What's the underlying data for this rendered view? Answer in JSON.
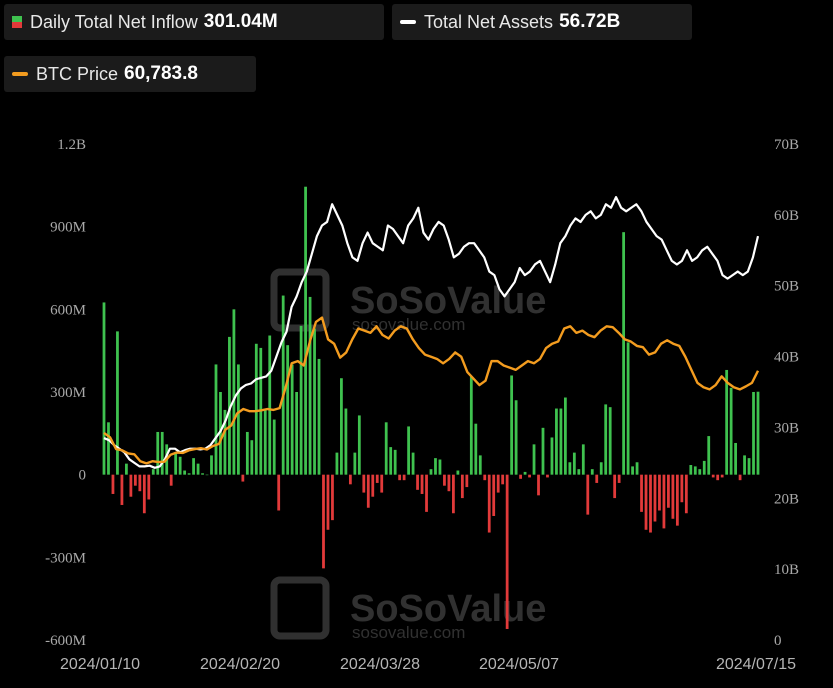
{
  "legend": {
    "inflow": {
      "label": "Daily Total Net Inflow",
      "value": "301.04M",
      "color_pos": "#3fc24f",
      "color_neg": "#e23a3a"
    },
    "assets": {
      "label": "Total Net Assets",
      "value": "56.72B",
      "color": "#ffffff"
    },
    "btc": {
      "label": "BTC Price",
      "value": "60,783.8",
      "color": "#f39c1f"
    }
  },
  "watermark": {
    "brand": "SoSoValue",
    "site": "sosovalue.com"
  },
  "chart_data": {
    "type": "bar",
    "left_axis": {
      "ticks": [
        "1.2B",
        "900M",
        "600M",
        "300M",
        "0",
        "-300M",
        "-600M"
      ],
      "range": [
        -600,
        1200
      ],
      "unit": "M"
    },
    "right_axis": {
      "ticks": [
        "70B",
        "60B",
        "50B",
        "40B",
        "30B",
        "20B",
        "10B",
        "0"
      ],
      "range": [
        0,
        70
      ],
      "unit": "B"
    },
    "x_ticks": [
      "2024/01/10",
      "2024/02/20",
      "2024/03/28",
      "2024/05/07",
      "2024/07/15"
    ],
    "grid": false,
    "legend_position": "top-left",
    "series": [
      {
        "name": "Daily Total Net Inflow",
        "kind": "bar",
        "unit": "M USD",
        "values": [
          625,
          190,
          -70,
          520,
          -110,
          40,
          -80,
          -40,
          -60,
          -140,
          -90,
          20,
          155,
          155,
          110,
          -40,
          80,
          65,
          15,
          5,
          60,
          40,
          5,
          0,
          70,
          400,
          300,
          235,
          500,
          600,
          400,
          -25,
          155,
          125,
          475,
          460,
          240,
          505,
          200,
          -130,
          650,
          470,
          400,
          300,
          540,
          1045,
          645,
          530,
          420,
          -340,
          -200,
          -165,
          80,
          350,
          240,
          -35,
          80,
          215,
          -65,
          -120,
          -80,
          -30,
          -65,
          190,
          100,
          90,
          -20,
          -20,
          175,
          80,
          -55,
          -70,
          -135,
          20,
          60,
          55,
          -40,
          -60,
          -140,
          15,
          -85,
          -45,
          355,
          185,
          70,
          -20,
          -210,
          -150,
          -65,
          -35,
          -560,
          360,
          270,
          -15,
          10,
          -10,
          110,
          -75,
          170,
          -10,
          135,
          240,
          240,
          280,
          45,
          80,
          20,
          110,
          -145,
          20,
          -30,
          45,
          255,
          245,
          -85,
          -30,
          880,
          480,
          30,
          45,
          -135,
          -200,
          -210,
          -170,
          -130,
          -195,
          -120,
          -160,
          -185,
          -100,
          -140,
          35,
          30,
          20,
          50,
          140,
          -10,
          -20,
          -10,
          380,
          315,
          115,
          -20,
          70,
          60,
          300,
          301.04
        ]
      },
      {
        "name": "Total Net Assets",
        "kind": "line",
        "unit": "B USD",
        "values": [
          28.5,
          28.2,
          27.5,
          27.0,
          26.5,
          25.5,
          25.0,
          24.5,
          24.5,
          24.6,
          24.3,
          24.5,
          25.5,
          27.0,
          27.0,
          26.5,
          26.8,
          27.0,
          27.0,
          26.9,
          27.0,
          27.5,
          28.5,
          29.5,
          31.0,
          33.0,
          34.5,
          35.5,
          36.0,
          36.2,
          36.8,
          37.0,
          37.2,
          38.0,
          40.0,
          42.0,
          43.5,
          47.0,
          48.5,
          50.5,
          52.0,
          54.5,
          57.0,
          58.5,
          59.0,
          61.5,
          60.0,
          58.5,
          56.0,
          54.0,
          53.5,
          56.0,
          57.5,
          56.0,
          55.5,
          55.0,
          58.5,
          58.0,
          57.0,
          56.0,
          58.5,
          59.5,
          61.0,
          57.5,
          56.5,
          58.0,
          59.0,
          58.5,
          56.5,
          54.0,
          54.5,
          55.5,
          56.0,
          56.0,
          55.0,
          54.0,
          52.0,
          51.5,
          49.5,
          48.5,
          49.5,
          50.5,
          52.5,
          51.5,
          52.0,
          53.0,
          53.5,
          52.0,
          50.5,
          53.0,
          56.0,
          57.0,
          58.5,
          59.5,
          59.0,
          60.0,
          60.5,
          59.5,
          60.0,
          61.5,
          61.0,
          62.5,
          61.0,
          60.5,
          61.0,
          61.5,
          60.5,
          59.0,
          58.0,
          57.0,
          56.5,
          55.0,
          53.5,
          53.0,
          53.5,
          55.0,
          53.5,
          54.0,
          55.0,
          55.5,
          54.5,
          53.5,
          51.5,
          51.0,
          51.5,
          52.0,
          51.5,
          52.0,
          54.0,
          57.0
        ]
      },
      {
        "name": "BTC Price",
        "kind": "line",
        "unit": "USD",
        "y_axis": "unlabeled",
        "values": [
          46500,
          45500,
          42800,
          42500,
          41800,
          41600,
          40000,
          39500,
          40000,
          39800,
          39900,
          41500,
          42000,
          41900,
          42500,
          42800,
          43000,
          42700,
          43500,
          44000,
          47200,
          48200,
          51000,
          52000,
          51500,
          51500,
          51700,
          52000,
          51800,
          52200,
          57000,
          62500,
          63000,
          62000,
          67500,
          72000,
          73000,
          68000,
          67000,
          63800,
          65000,
          68000,
          70500,
          70000,
          69500,
          71000,
          69000,
          68200,
          70000,
          71000,
          70500,
          68000,
          66000,
          64500,
          64000,
          63500,
          62500,
          63500,
          65000,
          64000,
          60500,
          59000,
          57500,
          58500,
          63000,
          63000,
          62000,
          61500,
          61000,
          62000,
          63000,
          62500,
          63500,
          66000,
          67000,
          67500,
          70500,
          71000,
          69500,
          70000,
          69000,
          68500,
          70000,
          71000,
          70800,
          69500,
          68000,
          67500,
          66500,
          66200,
          64500,
          65000,
          67000,
          67800,
          67000,
          66500,
          64000,
          61000,
          58000,
          57000,
          56500,
          57500,
          59500,
          58000,
          57000,
          56500,
          57200,
          58000,
          60783.8
        ]
      }
    ]
  }
}
